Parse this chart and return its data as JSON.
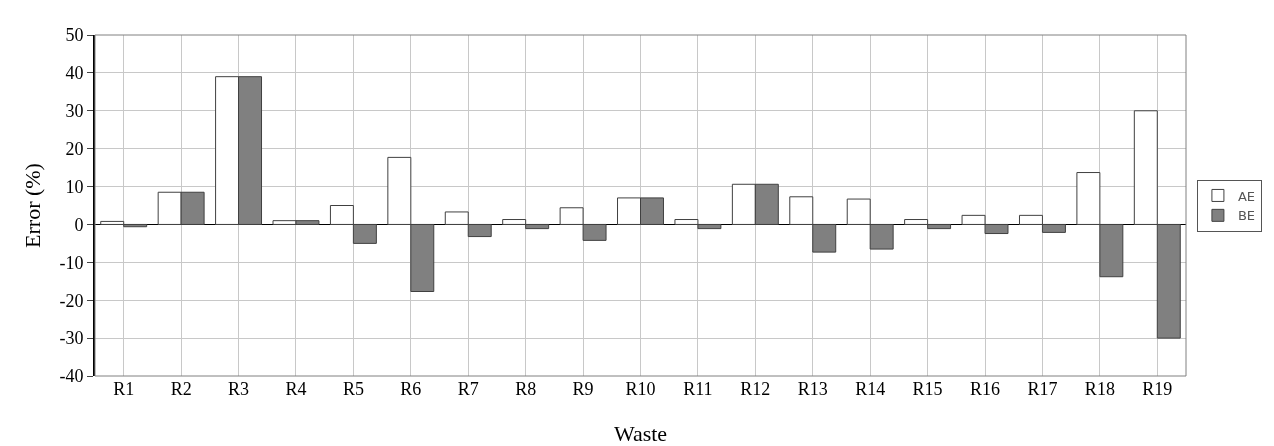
{
  "chart_data": {
    "type": "bar",
    "xlabel": "Waste",
    "ylabel": "Error (%)",
    "categories": [
      "R1",
      "R2",
      "R3",
      "R4",
      "R5",
      "R6",
      "R7",
      "R8",
      "R9",
      "R10",
      "R11",
      "R12",
      "R13",
      "R14",
      "R15",
      "R16",
      "R17",
      "R18",
      "R19"
    ],
    "series": [
      {
        "name": "AE",
        "color": "#ffffff",
        "values": [
          0.8,
          8.5,
          39,
          1,
          5,
          17.7,
          3.3,
          1.3,
          4.4,
          7,
          1.3,
          10.6,
          7.3,
          6.7,
          1.3,
          2.4,
          2.4,
          13.7,
          30
        ]
      },
      {
        "name": "BE",
        "color": "#808080",
        "values": [
          -0.6,
          8.5,
          39,
          1,
          -5,
          -17.7,
          -3.2,
          -1.1,
          -4.2,
          7,
          -1.1,
          10.6,
          -7.3,
          -6.5,
          -1.1,
          -2.4,
          -2.1,
          -13.8,
          -30
        ]
      }
    ],
    "ylim": [
      -40,
      50
    ],
    "yticks": [
      -40,
      -30,
      -20,
      -10,
      0,
      10,
      20,
      30,
      40,
      50
    ],
    "grid": true,
    "legend": "right"
  }
}
